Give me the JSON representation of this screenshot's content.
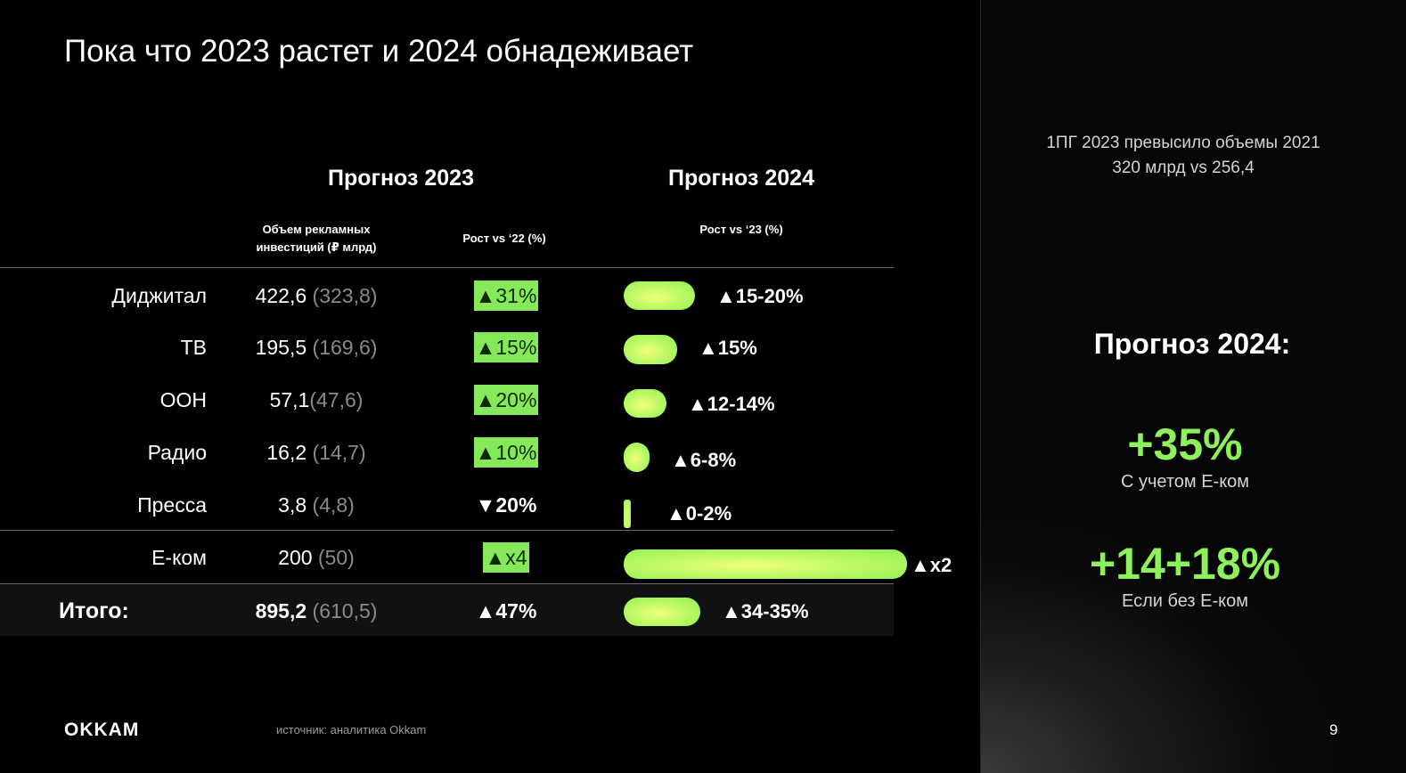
{
  "title": "Пока что 2023 растет и 2024 обнадеживает",
  "headers": {
    "forecast_2023": "Прогноз 2023",
    "forecast_2024": "Прогноз 2024",
    "volume_line1": "Объем рекламных",
    "volume_line2": "инвестиций (₽ млрд)",
    "growth_22": "Рост  vs ‘22 (%)",
    "growth_23": "Рост  vs ‘23 (%)"
  },
  "chart_data": {
    "type": "table",
    "rows": [
      {
        "label": "Диджитал",
        "value": "422,6",
        "prev": "(323,8)",
        "growth": "▲31%",
        "growth_style": "highlight",
        "growth_2024": "▲15-20%",
        "bar_level": 0.25
      },
      {
        "label": "ТВ",
        "value": "195,5",
        "prev": "(169,6)",
        "growth": "▲15%",
        "growth_style": "highlight",
        "growth_2024": "▲15%",
        "bar_level": 0.19
      },
      {
        "label": "OOH",
        "value": "57,1",
        "prev": "(47,6)",
        "growth": "▲20%",
        "growth_style": "highlight",
        "growth_2024": "▲12-14%",
        "bar_level": 0.15
      },
      {
        "label": "Радио",
        "value": "16,2",
        "prev": "(14,7)",
        "growth": "▲10%",
        "growth_style": "highlight",
        "growth_2024": "▲6-8%",
        "bar_level": 0.09
      },
      {
        "label": "Пресса",
        "value": "3,8",
        "prev": "(4,8)",
        "growth": "▼20%",
        "growth_style": "plain",
        "growth_2024": "▲0-2%",
        "bar_level": 0.02
      },
      {
        "label": "Е-ком",
        "value": "200",
        "prev": "(50)",
        "growth": "▲x4",
        "growth_style": "highlight",
        "growth_2024": "▲x2",
        "bar_level": 1.0
      }
    ],
    "total": {
      "label": "Итого:",
      "value": "895,2",
      "prev": "(610,5)",
      "growth": "▲47%",
      "growth_2024": "▲34-35%",
      "bar_level": 0.27
    }
  },
  "right_panel": {
    "note_line1": "1ПГ 2023 превысило объемы 2021",
    "note_line2": "320 млрд vs 256,4",
    "header": "Прогноз 2024:",
    "stat1_value": "+35%",
    "stat1_caption": "С учетом Е-ком",
    "stat2_value": "+14+18%",
    "stat2_caption": "Если без Е-ком"
  },
  "footer": {
    "logo": "OKKAM",
    "source": "источник: аналитика Okkam",
    "page": "9"
  },
  "colors": {
    "accent_green": "#86e95a",
    "bar_highlight": "#f1ff7e"
  }
}
